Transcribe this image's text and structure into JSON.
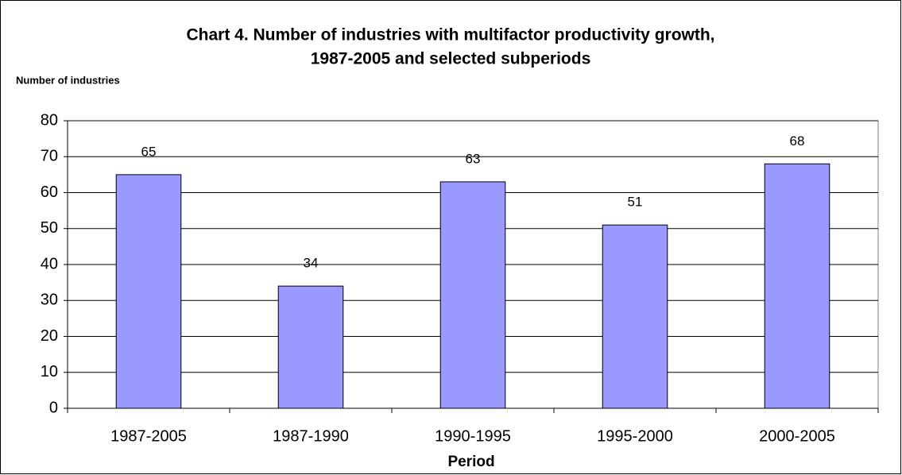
{
  "chart_data": {
    "type": "bar",
    "title": [
      "Chart 4. Number of industries with multifactor productivity growth,",
      "1987-2005 and selected subperiods"
    ],
    "y_label": "Number of industries",
    "x_label": "Period",
    "categories": [
      "1987-2005",
      "1987-1990",
      "1990-1995",
      "1995-2000",
      "2000-2005"
    ],
    "values": [
      65,
      34,
      63,
      51,
      68
    ],
    "color": "#9999ff",
    "ylim": [
      0,
      80
    ],
    "yticks": [
      0,
      10,
      20,
      30,
      40,
      50,
      60,
      70,
      80
    ],
    "grid": true
  }
}
